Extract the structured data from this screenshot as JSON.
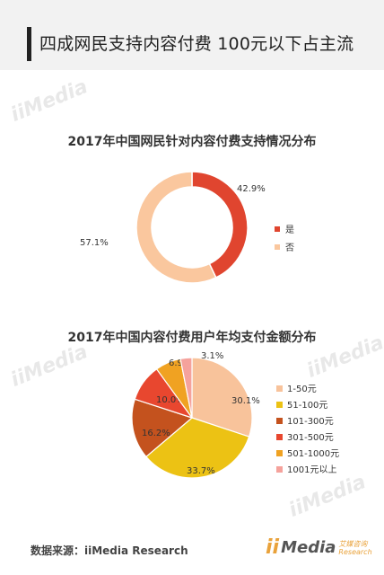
{
  "header": {
    "title": "四成网民支持内容付费   100元以下占主流"
  },
  "watermark_text": "iiMedia",
  "chart_data": [
    {
      "type": "pie",
      "variant": "donut",
      "title": "2017年中国网民针对内容付费支持情况分布",
      "labels": [
        "是",
        "否"
      ],
      "values": [
        42.9,
        57.1
      ],
      "value_labels": [
        "42.9%",
        "57.1%"
      ],
      "colors": [
        "#e0452f",
        "#fac79e"
      ],
      "legend_position": "right"
    },
    {
      "type": "pie",
      "title": "2017年中国内容付费用户年均支付金额分布",
      "labels": [
        "1-50元",
        "51-100元",
        "101-300元",
        "301-500元",
        "501-1000元",
        "1001元以上"
      ],
      "values": [
        30.1,
        33.7,
        16.2,
        10.0,
        6.9,
        3.1
      ],
      "value_labels": [
        "30.1%",
        "33.7%",
        "16.2%",
        "10.0%",
        "6.9%",
        "3.1%"
      ],
      "colors": [
        "#f8c39b",
        "#ecc214",
        "#c4521e",
        "#e8472f",
        "#f0a222",
        "#f5a29c"
      ],
      "legend_position": "right"
    }
  ],
  "footer": {
    "source": "数据来源：iiMedia Research",
    "logo_mark": "ii",
    "logo_text": "Media",
    "logo_cn": "艾媒咨询",
    "logo_en": "Research"
  }
}
